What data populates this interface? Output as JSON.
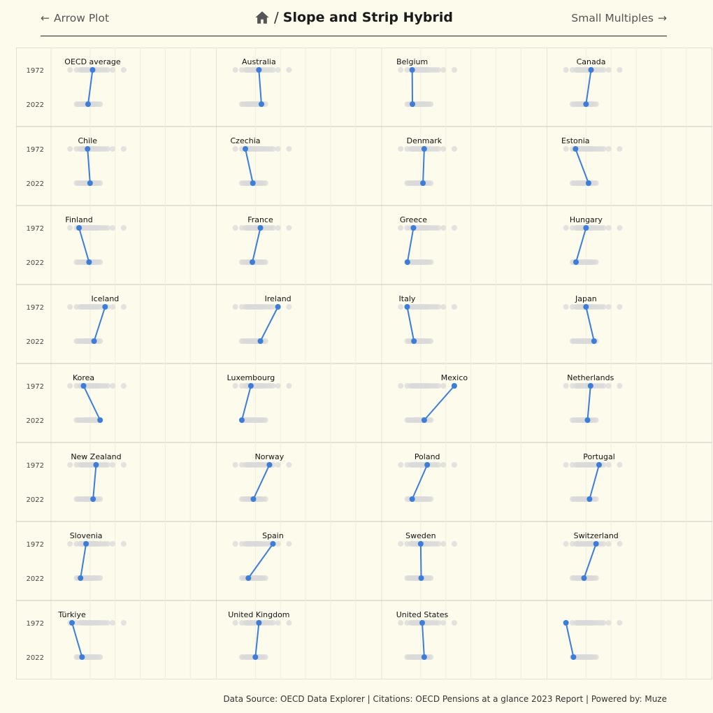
{
  "header": {
    "prev_label": "Arrow Plot",
    "title": "Slope and Strip Hybrid",
    "next_label": "Small Multiples"
  },
  "footer": {
    "text": "Data Source: OECD Data Explorer | Citations: OECD Pensions at a glance 2023 Report | Powered by: Muze"
  },
  "colors": {
    "background": "#fdfbec",
    "accent": "#3b7ddd",
    "strip": "#d9d9d9",
    "grid": "#e6e4d6",
    "border": "#c8c8c0"
  },
  "chart_data": {
    "type": "scatter",
    "title": "",
    "years": [
      "1972",
      "2022"
    ],
    "columns": 4,
    "xlim": [
      0,
      29
    ],
    "panels": [
      {
        "name": "OECD average",
        "v1972": 5.5,
        "v2022": 4.6
      },
      {
        "name": "Australia",
        "v1972": 5.7,
        "v2022": 6.2
      },
      {
        "name": "Belgium",
        "v1972": 3.3,
        "v2022": 3.35
      },
      {
        "name": "Canada",
        "v1972": 6.0,
        "v2022": 5.0
      },
      {
        "name": "Chile",
        "v1972": 4.5,
        "v2022": 5.0
      },
      {
        "name": "Czechia",
        "v1972": 3.0,
        "v2022": 4.5
      },
      {
        "name": "Denmark",
        "v1972": 5.7,
        "v2022": 5.45
      },
      {
        "name": "Estonia",
        "v1972": 2.9,
        "v2022": 5.5
      },
      {
        "name": "Finland",
        "v1972": 2.8,
        "v2022": 4.8
      },
      {
        "name": "France",
        "v1972": 6.0,
        "v2022": 4.4
      },
      {
        "name": "Greece",
        "v1972": 3.55,
        "v2022": 2.35
      },
      {
        "name": "Hungary",
        "v1972": 5.0,
        "v2022": 3.0
      },
      {
        "name": "Iceland",
        "v1972": 8.0,
        "v2022": 5.8
      },
      {
        "name": "Ireland",
        "v1972": 9.5,
        "v2022": 6.0
      },
      {
        "name": "Italy",
        "v1972": 2.3,
        "v2022": 3.65
      },
      {
        "name": "Japan",
        "v1972": 5.0,
        "v2022": 6.6
      },
      {
        "name": "Korea",
        "v1972": 3.7,
        "v2022": 7.0
      },
      {
        "name": "Luxembourg",
        "v1972": 4.1,
        "v2022": 2.3
      },
      {
        "name": "Mexico",
        "v1972": 11.7,
        "v2022": 5.7
      },
      {
        "name": "Netherlands",
        "v1972": 5.9,
        "v2022": 5.3
      },
      {
        "name": "New Zealand",
        "v1972": 6.2,
        "v2022": 5.6
      },
      {
        "name": "Norway",
        "v1972": 7.8,
        "v2022": 4.6
      },
      {
        "name": "Poland",
        "v1972": 6.3,
        "v2022": 3.3
      },
      {
        "name": "Portugal",
        "v1972": 7.6,
        "v2022": 5.7
      },
      {
        "name": "Slovenia",
        "v1972": 4.2,
        "v2022": 3.1
      },
      {
        "name": "Spain",
        "v1972": 8.5,
        "v2022": 3.6
      },
      {
        "name": "Sweden",
        "v1972": 5.0,
        "v2022": 5.1
      },
      {
        "name": "Switzerland",
        "v1972": 7.0,
        "v2022": 4.6
      },
      {
        "name": "Türkiye",
        "v1972": 1.4,
        "v2022": 3.4
      },
      {
        "name": "United Kingdom",
        "v1972": 5.7,
        "v2022": 5.0
      },
      {
        "name": "United States",
        "v1972": 5.3,
        "v2022": 5.7
      },
      {
        "name": "",
        "v1972": 1.0,
        "v2022": 2.5
      }
    ],
    "strip_1972": [
      1.0,
      2.3,
      3.0,
      3.3,
      3.5,
      3.7,
      4.0,
      4.2,
      4.5,
      4.8,
      5.0,
      5.3,
      5.5,
      5.7,
      6.0,
      6.2,
      6.6,
      7.0,
      7.5,
      8.0,
      8.5,
      9.5,
      11.7
    ],
    "strip_2022": [
      2.3,
      2.6,
      3.0,
      3.3,
      3.5,
      3.7,
      4.0,
      4.2,
      4.4,
      4.6,
      4.8,
      5.0,
      5.2,
      5.4,
      5.6,
      5.8,
      6.0,
      6.2,
      6.6,
      7.0
    ]
  }
}
